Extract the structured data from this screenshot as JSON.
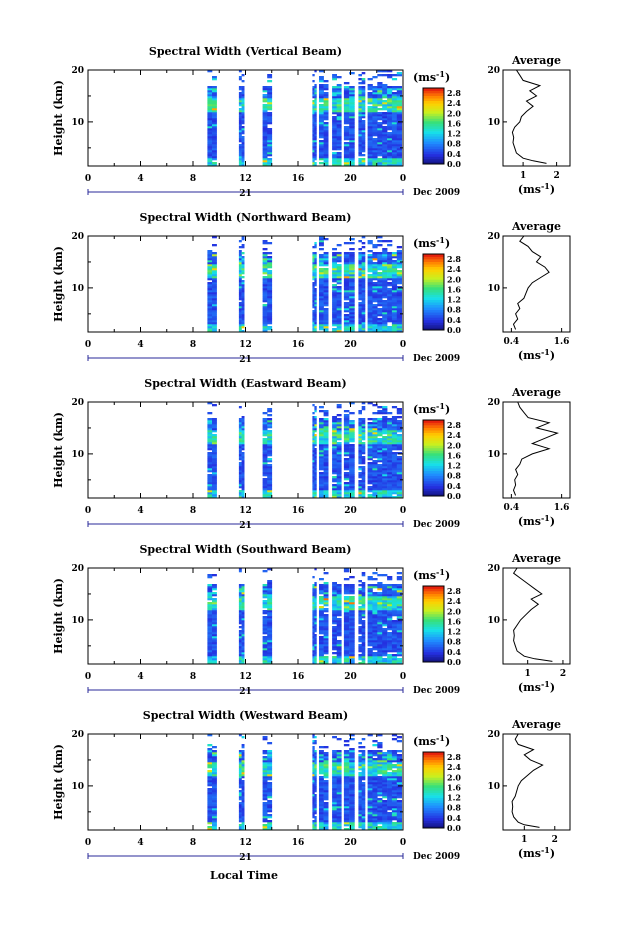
{
  "figure": {
    "xlabel_bottom": "Local Time",
    "date_label": "Dec 2009",
    "day_label": "21",
    "colorbar_unit": "(ms",
    "colorbar_unit_sup": "-1",
    "colorbar_unit_close": ")",
    "average_title": "Average",
    "average_unit": "(ms",
    "average_unit_sup": "-1",
    "average_unit_close": ")",
    "height_label": "Height (km)"
  },
  "chart_data": [
    {
      "type": "heatmap",
      "title": "Spectral Width (Vertical Beam)",
      "ylabel": "Height (km)",
      "xlim": [
        0,
        24
      ],
      "x_ticks": [
        "0",
        "4",
        "8",
        "12",
        "16",
        "20",
        "0"
      ],
      "ylim": [
        1.5,
        20
      ],
      "y_ticks": [
        "20",
        "10"
      ],
      "colorbar": {
        "ticks": [
          "2.8",
          "2.4",
          "2.0",
          "1.6",
          "1.2",
          "0.8",
          "0.4",
          "0.0"
        ],
        "range": [
          0,
          3.0
        ]
      },
      "data_time_blocks": [
        [
          9.1,
          9.8
        ],
        [
          11.5,
          11.9
        ],
        [
          13.3,
          14.0
        ],
        [
          17.1,
          17.4
        ],
        [
          17.6,
          18.3
        ],
        [
          18.6,
          19.3
        ],
        [
          19.5,
          20.3
        ],
        [
          20.6,
          21.1
        ],
        [
          21.3,
          23.9
        ]
      ],
      "sparse_above_km": 17,
      "average_profile": {
        "xlim": [
          0.4,
          2.4
        ],
        "x_ticks": [
          "1",
          "2"
        ],
        "y_ticks": [
          "20",
          "10"
        ],
        "points": [
          [
            1.7,
            2
          ],
          [
            1.3,
            2.5
          ],
          [
            1.0,
            3
          ],
          [
            0.8,
            4
          ],
          [
            0.75,
            5
          ],
          [
            0.7,
            6
          ],
          [
            0.72,
            7
          ],
          [
            0.68,
            8
          ],
          [
            0.75,
            9
          ],
          [
            0.9,
            10
          ],
          [
            0.95,
            11
          ],
          [
            1.1,
            12
          ],
          [
            1.3,
            13
          ],
          [
            1.1,
            14
          ],
          [
            1.4,
            15
          ],
          [
            1.2,
            16
          ],
          [
            1.5,
            17
          ],
          [
            1.0,
            18
          ],
          [
            0.9,
            19
          ],
          [
            0.8,
            20
          ]
        ]
      }
    },
    {
      "type": "heatmap",
      "title": "Spectral Width (Northward Beam)",
      "ylabel": "Height (km)",
      "xlim": [
        0,
        24
      ],
      "x_ticks": [
        "0",
        "4",
        "8",
        "12",
        "16",
        "20",
        "0"
      ],
      "ylim": [
        1.5,
        20
      ],
      "y_ticks": [
        "20",
        "10"
      ],
      "colorbar": {
        "ticks": [
          "2.8",
          "2.4",
          "2.0",
          "1.6",
          "1.2",
          "0.8",
          "0.4",
          "0.0"
        ],
        "range": [
          0,
          3.0
        ]
      },
      "data_time_blocks": [
        [
          9.1,
          9.8
        ],
        [
          11.5,
          11.9
        ],
        [
          13.3,
          14.0
        ],
        [
          17.1,
          17.4
        ],
        [
          17.6,
          18.3
        ],
        [
          18.6,
          19.3
        ],
        [
          19.5,
          20.3
        ],
        [
          20.6,
          21.1
        ],
        [
          21.3,
          23.9
        ]
      ],
      "sparse_above_km": 17,
      "average_profile": {
        "xlim": [
          0.2,
          1.8
        ],
        "x_ticks": [
          "0.4",
          "1.6"
        ],
        "y_ticks": [
          "20",
          "10"
        ],
        "points": [
          [
            0.5,
            2
          ],
          [
            0.45,
            3
          ],
          [
            0.55,
            4
          ],
          [
            0.5,
            5
          ],
          [
            0.6,
            6
          ],
          [
            0.55,
            7
          ],
          [
            0.7,
            8
          ],
          [
            0.75,
            9
          ],
          [
            0.8,
            10
          ],
          [
            0.9,
            11
          ],
          [
            1.1,
            12
          ],
          [
            1.3,
            13
          ],
          [
            1.2,
            14
          ],
          [
            1.0,
            15
          ],
          [
            1.1,
            16
          ],
          [
            0.9,
            17
          ],
          [
            0.8,
            18
          ],
          [
            0.6,
            19
          ],
          [
            0.7,
            20
          ]
        ]
      }
    },
    {
      "type": "heatmap",
      "title": "Spectral Width (Eastward Beam)",
      "ylabel": "Height (km)",
      "xlim": [
        0,
        24
      ],
      "x_ticks": [
        "0",
        "4",
        "8",
        "12",
        "16",
        "20",
        "0"
      ],
      "ylim": [
        1.5,
        20
      ],
      "y_ticks": [
        "20",
        "10"
      ],
      "colorbar": {
        "ticks": [
          "2.8",
          "2.4",
          "2.0",
          "1.6",
          "1.2",
          "0.8",
          "0.4",
          "0.0"
        ],
        "range": [
          0,
          3.0
        ]
      },
      "data_time_blocks": [
        [
          9.1,
          9.8
        ],
        [
          11.5,
          11.9
        ],
        [
          13.3,
          14.0
        ],
        [
          17.1,
          17.4
        ],
        [
          17.6,
          18.3
        ],
        [
          18.6,
          19.3
        ],
        [
          19.5,
          20.3
        ],
        [
          20.6,
          21.1
        ],
        [
          21.3,
          23.9
        ]
      ],
      "sparse_above_km": 17,
      "average_profile": {
        "xlim": [
          0.2,
          1.8
        ],
        "x_ticks": [
          "0.4",
          "1.6"
        ],
        "y_ticks": [
          "20",
          "10"
        ],
        "points": [
          [
            0.5,
            2
          ],
          [
            0.45,
            3
          ],
          [
            0.5,
            4
          ],
          [
            0.48,
            5
          ],
          [
            0.55,
            6
          ],
          [
            0.5,
            7
          ],
          [
            0.6,
            8
          ],
          [
            0.65,
            9
          ],
          [
            0.9,
            10
          ],
          [
            1.3,
            11
          ],
          [
            0.9,
            12
          ],
          [
            1.2,
            13
          ],
          [
            1.5,
            14
          ],
          [
            1.0,
            15
          ],
          [
            1.3,
            16
          ],
          [
            0.8,
            17
          ],
          [
            0.7,
            18
          ],
          [
            0.6,
            19
          ],
          [
            0.55,
            20
          ]
        ]
      }
    },
    {
      "type": "heatmap",
      "title": "Spectral Width (Southward Beam)",
      "ylabel": "Height (km)",
      "xlim": [
        0,
        24
      ],
      "x_ticks": [
        "0",
        "4",
        "8",
        "12",
        "16",
        "20",
        "0"
      ],
      "ylim": [
        1.5,
        20
      ],
      "y_ticks": [
        "20",
        "10"
      ],
      "colorbar": {
        "ticks": [
          "2.8",
          "2.4",
          "2.0",
          "1.6",
          "1.2",
          "0.8",
          "0.4",
          "0.0"
        ],
        "range": [
          0,
          3.0
        ]
      },
      "data_time_blocks": [
        [
          9.1,
          9.8
        ],
        [
          11.5,
          11.9
        ],
        [
          13.3,
          14.0
        ],
        [
          17.1,
          17.4
        ],
        [
          17.6,
          18.3
        ],
        [
          18.6,
          19.3
        ],
        [
          19.5,
          20.3
        ],
        [
          20.6,
          21.1
        ],
        [
          21.3,
          23.9
        ]
      ],
      "sparse_above_km": 17,
      "average_profile": {
        "xlim": [
          0.3,
          2.2
        ],
        "x_ticks": [
          "1",
          "2"
        ],
        "y_ticks": [
          "20",
          "10"
        ],
        "points": [
          [
            1.7,
            2
          ],
          [
            1.2,
            2.5
          ],
          [
            0.9,
            3
          ],
          [
            0.7,
            4
          ],
          [
            0.65,
            5
          ],
          [
            0.6,
            6
          ],
          [
            0.62,
            7
          ],
          [
            0.6,
            8
          ],
          [
            0.7,
            9
          ],
          [
            0.8,
            10
          ],
          [
            0.95,
            11
          ],
          [
            1.1,
            12
          ],
          [
            1.3,
            13
          ],
          [
            1.1,
            14
          ],
          [
            1.4,
            15
          ],
          [
            1.2,
            16
          ],
          [
            1.0,
            17
          ],
          [
            0.8,
            18
          ],
          [
            0.6,
            19
          ],
          [
            0.7,
            20
          ]
        ]
      }
    },
    {
      "type": "heatmap",
      "title": "Spectral Width (Westward Beam)",
      "ylabel": "Height (km)",
      "xlim": [
        0,
        24
      ],
      "x_ticks": [
        "0",
        "4",
        "8",
        "12",
        "16",
        "20",
        "0"
      ],
      "ylim": [
        1.5,
        20
      ],
      "y_ticks": [
        "20",
        "10"
      ],
      "colorbar": {
        "ticks": [
          "2.8",
          "2.4",
          "2.0",
          "1.6",
          "1.2",
          "0.8",
          "0.4",
          "0.0"
        ],
        "range": [
          0,
          3.0
        ]
      },
      "data_time_blocks": [
        [
          9.1,
          9.8
        ],
        [
          11.5,
          11.9
        ],
        [
          13.3,
          14.0
        ],
        [
          17.1,
          17.4
        ],
        [
          17.6,
          18.3
        ],
        [
          18.6,
          19.3
        ],
        [
          19.5,
          20.3
        ],
        [
          20.6,
          21.1
        ],
        [
          21.3,
          23.9
        ]
      ],
      "sparse_above_km": 17,
      "average_profile": {
        "xlim": [
          0.3,
          2.5
        ],
        "x_ticks": [
          "1",
          "2"
        ],
        "y_ticks": [
          "20",
          "10"
        ],
        "points": [
          [
            1.5,
            2
          ],
          [
            1.0,
            2.5
          ],
          [
            0.8,
            3
          ],
          [
            0.65,
            4
          ],
          [
            0.6,
            5
          ],
          [
            0.62,
            6
          ],
          [
            0.6,
            7
          ],
          [
            0.7,
            8
          ],
          [
            0.75,
            9
          ],
          [
            0.8,
            10
          ],
          [
            0.9,
            11
          ],
          [
            1.1,
            12
          ],
          [
            1.3,
            13
          ],
          [
            1.6,
            14
          ],
          [
            1.2,
            15
          ],
          [
            1.0,
            16
          ],
          [
            1.3,
            17
          ],
          [
            0.8,
            18
          ],
          [
            0.7,
            19
          ],
          [
            0.8,
            20
          ]
        ]
      }
    }
  ]
}
